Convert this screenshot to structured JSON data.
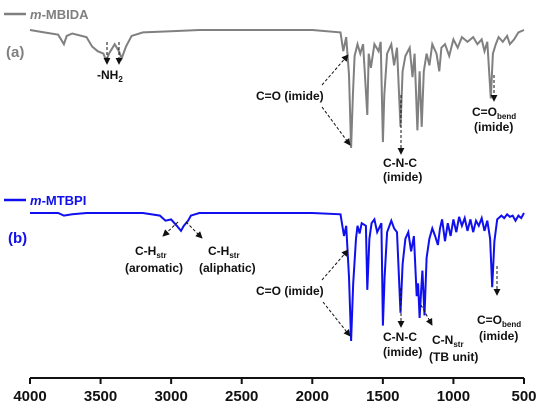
{
  "chart_data": {
    "type": "line",
    "x_range": [
      4000,
      500
    ],
    "x_reversed": true,
    "ticks": [
      "4000",
      "3500",
      "3000",
      "2500",
      "2000",
      "1500",
      "1000",
      "500"
    ],
    "series": [
      {
        "name_prefix": "m",
        "name_suffix": "-MBIDA",
        "panel_label": "(a)",
        "color": "#808080",
        "baseline": 0.0,
        "points": [
          [
            4000,
            0.0
          ],
          [
            3900,
            0.02
          ],
          [
            3800,
            0.04
          ],
          [
            3760,
            0.12
          ],
          [
            3740,
            0.05
          ],
          [
            3700,
            0.03
          ],
          [
            3600,
            0.06
          ],
          [
            3560,
            0.14
          ],
          [
            3520,
            0.18
          ],
          [
            3480,
            0.2
          ],
          [
            3460,
            0.26
          ],
          [
            3440,
            0.2
          ],
          [
            3400,
            0.12
          ],
          [
            3370,
            0.18
          ],
          [
            3350,
            0.24
          ],
          [
            3320,
            0.14
          ],
          [
            3280,
            0.05
          ],
          [
            3200,
            0.02
          ],
          [
            3000,
            0.01
          ],
          [
            2800,
            0.0
          ],
          [
            2400,
            0.0
          ],
          [
            2000,
            0.0
          ],
          [
            1800,
            0.02
          ],
          [
            1780,
            0.18
          ],
          [
            1760,
            0.06
          ],
          [
            1740,
            0.38
          ],
          [
            1725,
            1.0
          ],
          [
            1712,
            0.55
          ],
          [
            1700,
            0.22
          ],
          [
            1680,
            0.12
          ],
          [
            1660,
            0.2
          ],
          [
            1640,
            0.12
          ],
          [
            1610,
            0.72
          ],
          [
            1600,
            0.2
          ],
          [
            1585,
            0.32
          ],
          [
            1560,
            0.12
          ],
          [
            1530,
            0.18
          ],
          [
            1515,
            0.1
          ],
          [
            1500,
            0.95
          ],
          [
            1490,
            0.55
          ],
          [
            1470,
            0.2
          ],
          [
            1440,
            0.12
          ],
          [
            1420,
            0.3
          ],
          [
            1400,
            0.15
          ],
          [
            1375,
            0.82
          ],
          [
            1360,
            0.35
          ],
          [
            1340,
            0.22
          ],
          [
            1310,
            0.15
          ],
          [
            1290,
            0.4
          ],
          [
            1275,
            0.2
          ],
          [
            1255,
            0.85
          ],
          [
            1240,
            0.35
          ],
          [
            1225,
            0.82
          ],
          [
            1210,
            0.35
          ],
          [
            1190,
            0.2
          ],
          [
            1170,
            0.3
          ],
          [
            1150,
            0.12
          ],
          [
            1120,
            0.2
          ],
          [
            1100,
            0.35
          ],
          [
            1085,
            0.15
          ],
          [
            1060,
            0.12
          ],
          [
            1030,
            0.22
          ],
          [
            1000,
            0.08
          ],
          [
            970,
            0.15
          ],
          [
            940,
            0.06
          ],
          [
            900,
            0.1
          ],
          [
            860,
            0.06
          ],
          [
            830,
            0.12
          ],
          [
            800,
            0.08
          ],
          [
            780,
            0.18
          ],
          [
            760,
            0.1
          ],
          [
            735,
            0.58
          ],
          [
            720,
            0.2
          ],
          [
            700,
            0.12
          ],
          [
            680,
            0.06
          ],
          [
            650,
            0.1
          ],
          [
            620,
            0.05
          ],
          [
            600,
            0.12
          ],
          [
            570,
            0.08
          ],
          [
            540,
            0.02
          ],
          [
            500,
            0.0
          ]
        ]
      },
      {
        "name_prefix": "m",
        "name_suffix": "-MTBPI",
        "panel_label": "(b)",
        "color": "#1010ee",
        "baseline": 0.0,
        "points": [
          [
            4000,
            0.0
          ],
          [
            3800,
            0.0
          ],
          [
            3760,
            0.02
          ],
          [
            3700,
            0.01
          ],
          [
            3600,
            0.0
          ],
          [
            3400,
            0.0
          ],
          [
            3200,
            0.0
          ],
          [
            3080,
            0.02
          ],
          [
            3040,
            0.06
          ],
          [
            3000,
            0.05
          ],
          [
            2960,
            0.1
          ],
          [
            2930,
            0.14
          ],
          [
            2910,
            0.1
          ],
          [
            2880,
            0.06
          ],
          [
            2860,
            0.02
          ],
          [
            2800,
            0.0
          ],
          [
            2400,
            0.0
          ],
          [
            2000,
            0.0
          ],
          [
            1800,
            0.01
          ],
          [
            1775,
            0.18
          ],
          [
            1760,
            0.1
          ],
          [
            1740,
            0.5
          ],
          [
            1725,
            1.0
          ],
          [
            1710,
            0.55
          ],
          [
            1690,
            0.2
          ],
          [
            1680,
            0.1
          ],
          [
            1665,
            0.16
          ],
          [
            1650,
            0.08
          ],
          [
            1620,
            0.1
          ],
          [
            1610,
            0.6
          ],
          [
            1595,
            0.2
          ],
          [
            1580,
            0.08
          ],
          [
            1560,
            0.05
          ],
          [
            1540,
            0.15
          ],
          [
            1510,
            0.08
          ],
          [
            1500,
            0.88
          ],
          [
            1488,
            0.5
          ],
          [
            1470,
            0.15
          ],
          [
            1440,
            0.06
          ],
          [
            1420,
            0.12
          ],
          [
            1400,
            0.15
          ],
          [
            1375,
            0.78
          ],
          [
            1360,
            0.4
          ],
          [
            1340,
            0.2
          ],
          [
            1320,
            0.15
          ],
          [
            1300,
            0.3
          ],
          [
            1280,
            0.18
          ],
          [
            1260,
            0.65
          ],
          [
            1250,
            0.55
          ],
          [
            1240,
            0.82
          ],
          [
            1228,
            0.6
          ],
          [
            1220,
            0.45
          ],
          [
            1205,
            0.8
          ],
          [
            1190,
            0.35
          ],
          [
            1170,
            0.2
          ],
          [
            1150,
            0.12
          ],
          [
            1130,
            0.18
          ],
          [
            1110,
            0.25
          ],
          [
            1095,
            0.12
          ],
          [
            1080,
            0.05
          ],
          [
            1060,
            0.22
          ],
          [
            1040,
            0.08
          ],
          [
            1020,
            0.18
          ],
          [
            1000,
            0.05
          ],
          [
            980,
            0.15
          ],
          [
            960,
            0.03
          ],
          [
            940,
            0.1
          ],
          [
            920,
            0.04
          ],
          [
            900,
            0.14
          ],
          [
            880,
            0.05
          ],
          [
            860,
            0.15
          ],
          [
            840,
            0.06
          ],
          [
            820,
            0.1
          ],
          [
            800,
            0.04
          ],
          [
            780,
            0.14
          ],
          [
            760,
            0.06
          ],
          [
            740,
            0.2
          ],
          [
            725,
            0.58
          ],
          [
            710,
            0.22
          ],
          [
            690,
            0.05
          ],
          [
            660,
            0.02
          ],
          [
            640,
            0.04
          ],
          [
            620,
            0.01
          ],
          [
            600,
            0.03
          ],
          [
            580,
            0.02
          ],
          [
            560,
            0.06
          ],
          [
            540,
            0.02
          ],
          [
            520,
            0.04
          ],
          [
            500,
            0.0
          ]
        ]
      }
    ],
    "annotations": {
      "a": [
        {
          "text": "-NH",
          "sub": "2",
          "after": ""
        },
        {
          "text": "C=O (imide)",
          "sub": "",
          "after": ""
        },
        {
          "text": "C-N-C",
          "sub": "",
          "after": "",
          "line2": "(imide)"
        },
        {
          "text": "C=O",
          "sub": "bend",
          "after": "",
          "line2": "(imide)"
        }
      ],
      "b": [
        {
          "text": "C-H",
          "sub": "str",
          "after": "",
          "line2": "(aromatic)"
        },
        {
          "text": "C-H",
          "sub": "str",
          "after": "",
          "line2": "(aliphatic)"
        },
        {
          "text": "C=O (imide)",
          "sub": "",
          "after": ""
        },
        {
          "text": "C-N-C",
          "sub": "",
          "after": "",
          "line2": "(imide)"
        },
        {
          "text": "C-N",
          "sub": "str",
          "after": "",
          "line2": "(TB unit)"
        },
        {
          "text": "C=O",
          "sub": "bend",
          "after": "",
          "line2": "(imide)"
        }
      ]
    }
  }
}
